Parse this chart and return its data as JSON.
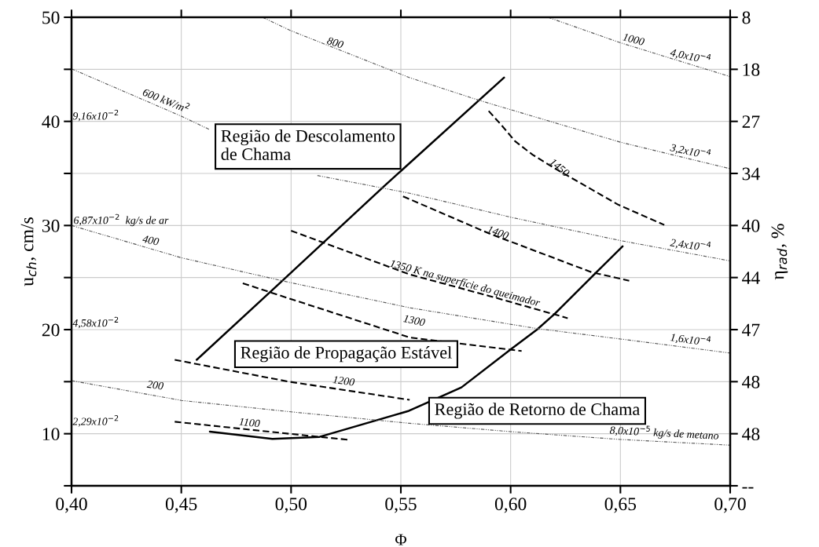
{
  "chart_data": {
    "type": "line",
    "xlabel": "Φ",
    "ylabel": "u$_{ch}$, cm/s",
    "y2label": "η$_{rad}$, %",
    "xlim": [
      0.4,
      0.7
    ],
    "xticks": [
      {
        "value": 0.4,
        "label": "0,40"
      },
      {
        "value": 0.45,
        "label": "0,45"
      },
      {
        "value": 0.5,
        "label": "0,50"
      },
      {
        "value": 0.55,
        "label": "0,55"
      },
      {
        "value": 0.6,
        "label": "0,60"
      },
      {
        "value": 0.65,
        "label": "0,65"
      },
      {
        "value": 0.7,
        "label": "0,70"
      }
    ],
    "ylim": [
      5,
      50
    ],
    "yticks": [
      {
        "value": 5,
        "label": null
      },
      10,
      {
        "value": 15,
        "label": null
      },
      20,
      {
        "value": 25,
        "label": null
      },
      30,
      {
        "value": 35,
        "label": null
      },
      40,
      {
        "value": 45,
        "label": null
      },
      50
    ],
    "y2_categories": [
      "8",
      "18",
      "27",
      "34",
      "40",
      "44",
      "47",
      "48",
      "48",
      "--"
    ],
    "grid": true,
    "series": [
      {
        "color": "#000000",
        "line_style": "solid",
        "x": [
          0.457,
          0.495,
          0.543,
          0.597
        ],
        "values": [
          17.1,
          24.5,
          33.9,
          44.2
        ]
      },
      {
        "color": "#000000",
        "line_style": "solid",
        "x": [
          0.463,
          0.4915,
          0.513,
          0.5537,
          0.5776,
          0.6,
          0.612,
          0.62,
          0.639,
          0.651
        ],
        "values": [
          10.2,
          9.5,
          9.7,
          12.2,
          14.45,
          18.1,
          20.0,
          21.5,
          25.5,
          28.0
        ]
      },
      {
        "color": "#000000",
        "line_style": "dashed",
        "x": [
          0.59,
          0.596,
          0.602,
          0.61,
          0.62,
          0.649,
          0.67
        ],
        "values": [
          41.0,
          39.6,
          38.1,
          36.8,
          35.5,
          32.0,
          30.05
        ]
      },
      {
        "color": "#000000",
        "line_style": "dashed",
        "x": [
          0.551,
          0.59,
          0.637,
          0.654
        ],
        "values": [
          32.8,
          29.25,
          25.5,
          24.7
        ]
      },
      {
        "color": "#000000",
        "line_style": "dashed",
        "x": [
          0.5,
          0.554,
          0.59,
          0.626
        ],
        "values": [
          29.5,
          25.3,
          23.25,
          21.1
        ]
      },
      {
        "color": "#000000",
        "line_style": "dashed",
        "x": [
          0.478,
          0.499,
          0.554,
          0.605
        ],
        "values": [
          24.45,
          23.0,
          19.25,
          17.95
        ]
      },
      {
        "color": "#000000",
        "line_style": "dashed",
        "x": [
          0.447,
          0.499,
          0.554
        ],
        "values": [
          17.1,
          15.0,
          13.25
        ]
      },
      {
        "color": "#000000",
        "line_style": "dashed",
        "x": [
          0.447,
          0.499,
          0.527
        ],
        "values": [
          11.15,
          10.0,
          9.4
        ]
      },
      {
        "color": "#555555",
        "line_style": "dotted",
        "x": [
          0.487,
          0.5,
          0.554,
          0.586,
          0.65,
          0.7
        ],
        "values": [
          50.0,
          48.7,
          44.2,
          42.0,
          38.0,
          35.45
        ]
      },
      {
        "color": "#555555",
        "line_style": "dotted",
        "x": [
          0.617,
          0.65,
          0.7
        ],
        "values": [
          50.0,
          47.55,
          44.3
        ]
      },
      {
        "color": "#555555",
        "line_style": "dotted",
        "x": [
          0.4,
          0.45,
          0.463,
          0.49,
          0.512,
          0.554,
          0.601,
          0.65,
          0.7
        ],
        "values": [
          45.05,
          40.5,
          39.2,
          null,
          34.8,
          33.1,
          30.75,
          28.55,
          26.6
        ]
      },
      {
        "color": "#555555",
        "line_style": "dotted",
        "x": [
          0.4,
          0.45,
          0.5,
          0.554,
          0.612,
          0.65,
          0.7
        ],
        "values": [
          30.0,
          26.9,
          24.5,
          22.1,
          20.1,
          19.1,
          17.75
        ]
      },
      {
        "color": "#555555",
        "line_style": "dotted",
        "x": [
          0.4,
          0.45,
          0.5,
          0.554,
          0.6,
          0.65,
          0.7
        ],
        "values": [
          15.1,
          13.2,
          12.1,
          11.0,
          10.2,
          9.45,
          8.9
        ]
      }
    ],
    "annotations": [
      "800",
      "1000",
      "4,0x10$^{−4}$",
      "600 kW/m$^{2}$",
      "9,16x10$^{−2}$",
      "3,2x10$^{−4}$",
      "1450",
      "6,87x10$^{−2}$  kg/s de ar",
      "400",
      "1400",
      "2,4x10$^{−4}$",
      "1350 K na superfície do queimador",
      "1300",
      "4,58x10$^{−2}$",
      "1,6x10$^{−4}$",
      "1200",
      "200",
      "2,29x10$^{−2}$",
      "1100",
      "8,0x10$^{−5}$ kg/s de metano",
      "Região de Descolamento\nde Chama",
      "Região de Propagação Estável",
      "Região de Retorno de Chama"
    ]
  }
}
